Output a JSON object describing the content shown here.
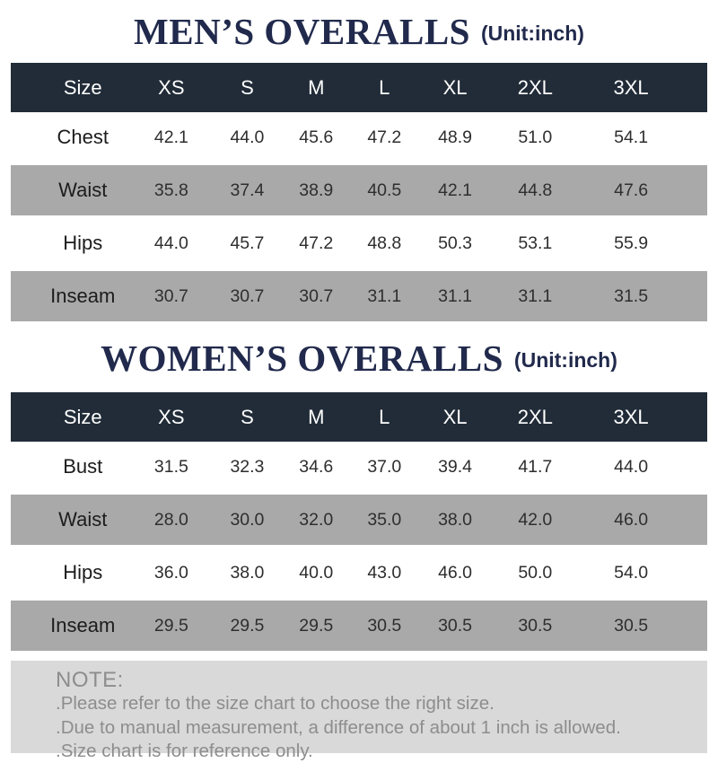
{
  "chart_data": [
    {
      "type": "table",
      "title": "MEN’S OVERALLS",
      "unit_label": "(Unit:inch)",
      "columns": [
        "Size",
        "XS",
        "S",
        "M",
        "L",
        "XL",
        "2XL",
        "3XL"
      ],
      "rows": [
        [
          "Chest",
          "42.1",
          "44.0",
          "45.6",
          "47.2",
          "48.9",
          "51.0",
          "54.1"
        ],
        [
          "Waist",
          "35.8",
          "37.4",
          "38.9",
          "40.5",
          "42.1",
          "44.8",
          "47.6"
        ],
        [
          "Hips",
          "44.0",
          "45.7",
          "47.2",
          "48.8",
          "50.3",
          "53.1",
          "55.9"
        ],
        [
          "Inseam",
          "30.7",
          "30.7",
          "30.7",
          "31.1",
          "31.1",
          "31.1",
          "31.5"
        ]
      ]
    },
    {
      "type": "table",
      "title": "WOMEN’S OVERALLS",
      "unit_label": "(Unit:inch)",
      "columns": [
        "Size",
        "XS",
        "S",
        "M",
        "L",
        "XL",
        "2XL",
        "3XL"
      ],
      "rows": [
        [
          "Bust",
          "31.5",
          "32.3",
          "34.6",
          "37.0",
          "39.4",
          "41.7",
          "44.0"
        ],
        [
          "Waist",
          "28.0",
          "30.0",
          "32.0",
          "35.0",
          "38.0",
          "42.0",
          "46.0"
        ],
        [
          "Hips",
          "36.0",
          "38.0",
          "40.0",
          "43.0",
          "46.0",
          "50.0",
          "54.0"
        ],
        [
          "Inseam",
          "29.5",
          "29.5",
          "29.5",
          "30.5",
          "30.5",
          "30.5",
          "30.5"
        ]
      ]
    }
  ],
  "note": {
    "heading": "NOTE:",
    "lines": [
      ".Please refer to the size chart to choose the right size.",
      ".Due to manual measurement, a difference of about 1 inch is allowed.",
      ".Size chart is for reference only."
    ]
  },
  "colors": {
    "title_navy": "#212a4c",
    "header_bg": "#212c38",
    "header_text": "#ffffff",
    "alt_row_bg": "#a9a9a9",
    "note_bg": "#d9d9d9",
    "note_text": "#8d8d8d"
  }
}
